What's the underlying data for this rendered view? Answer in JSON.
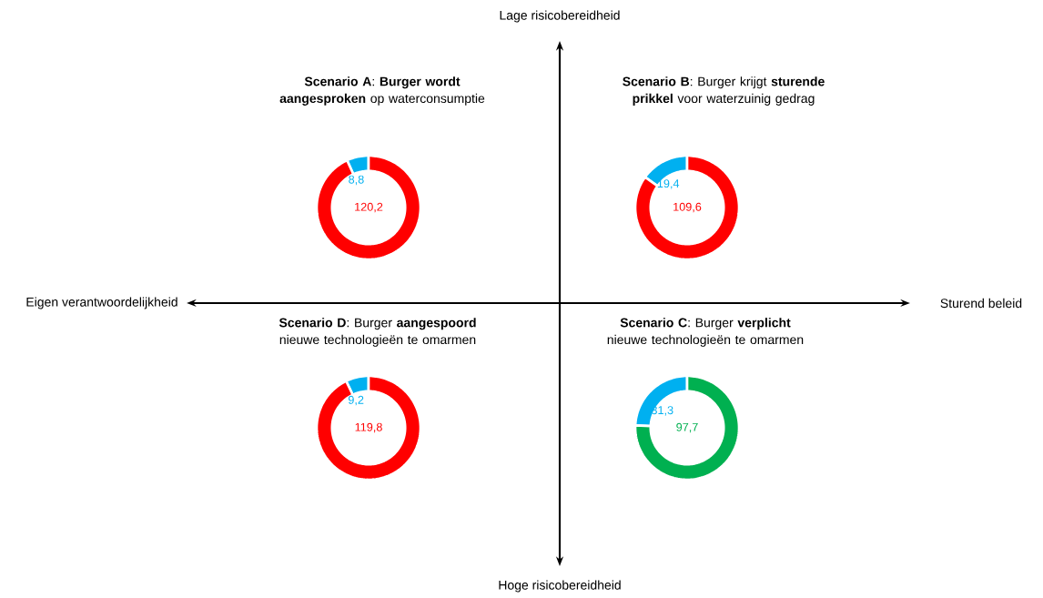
{
  "chart_data": [
    {
      "type": "other",
      "annotations": [
        "Lage risicobereidheid",
        "Hoge risicobereidheid",
        "Eigen verantwoordelijkheid",
        "Sturend beleid"
      ]
    },
    {
      "type": "donut",
      "title": "**Scenario A**: **Burger wordt aangesproken** op waterconsumptie",
      "categories": [
        null,
        null
      ],
      "values": [
        8.8,
        120.2
      ],
      "colors": [
        "#00b0f0",
        "#ff0000"
      ],
      "value_labels": [
        "8,8",
        "120,2"
      ]
    },
    {
      "type": "donut",
      "title": "**Scenario B**: Burger krijgt **sturende prikkel** voor waterzuinig gedrag",
      "categories": [
        null,
        null
      ],
      "values": [
        19.4,
        109.6
      ],
      "colors": [
        "#00b0f0",
        "#ff0000"
      ],
      "value_labels": [
        "19,4",
        "109,6"
      ]
    },
    {
      "type": "donut",
      "title": "**Scenario D**: Burger **aangespoord** nieuwe technologieën te omarmen",
      "categories": [
        null,
        null
      ],
      "values": [
        9.2,
        119.8
      ],
      "colors": [
        "#00b0f0",
        "#ff0000"
      ],
      "value_labels": [
        "9,2",
        "119,8"
      ]
    },
    {
      "type": "donut",
      "title": "**Scenario C**: Burger **verplicht** nieuwe technologieën te omarmen",
      "categories": [
        null,
        null
      ],
      "values": [
        31.3,
        97.7
      ],
      "colors": [
        "#00b0f0",
        "#00b050"
      ],
      "value_labels": [
        "31,3",
        "97,7"
      ]
    }
  ]
}
